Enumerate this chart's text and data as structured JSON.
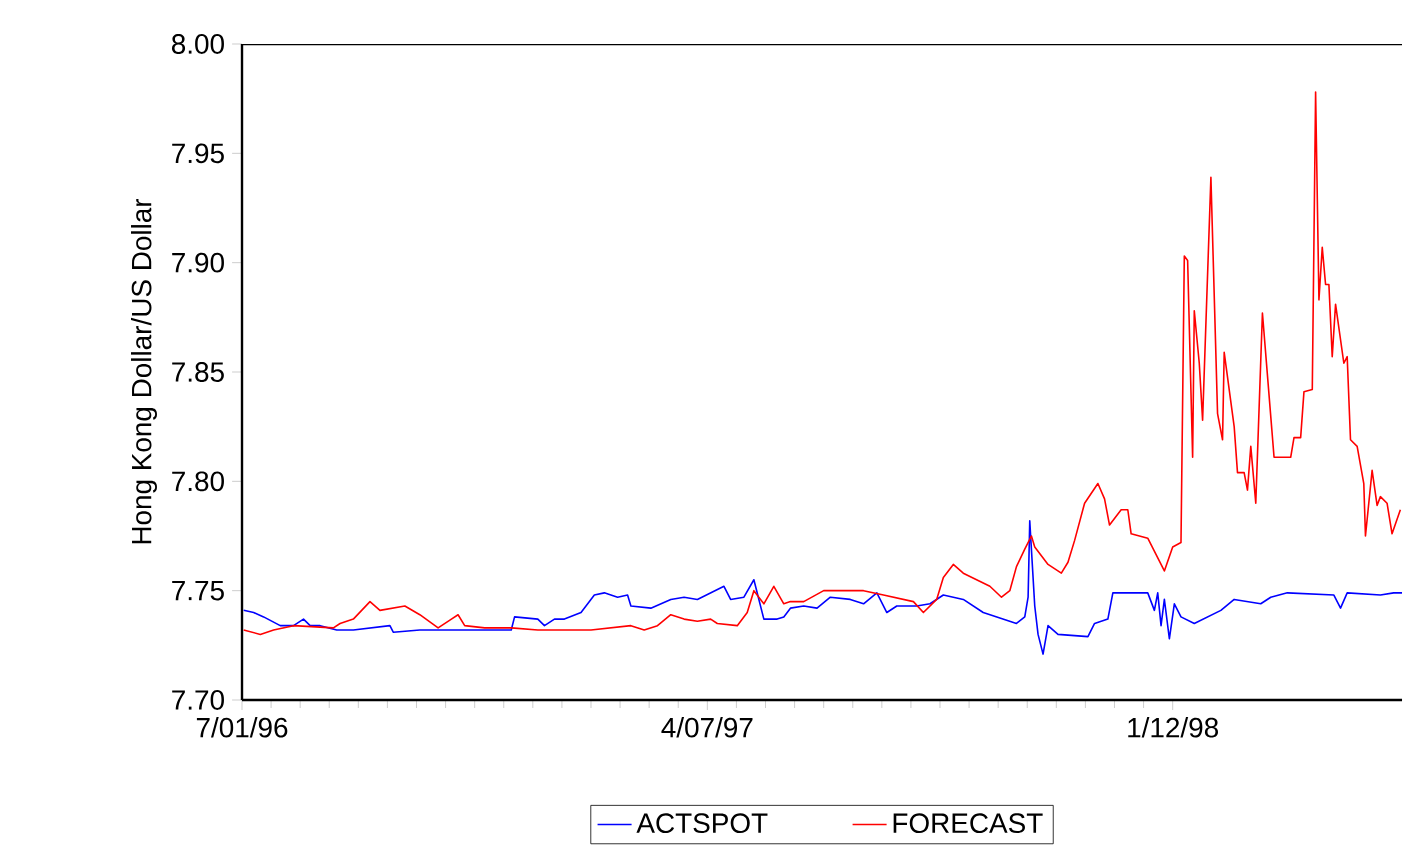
{
  "chart_data": {
    "type": "line",
    "ylabel": "Hong Kong Dollar/US Dollar",
    "xlim": [
      "1996-07-01",
      "1998-05-30"
    ],
    "ylim": [
      7.7,
      8.0
    ],
    "xticks": [
      {
        "value": "1996-07-01",
        "label": "7/01/96"
      },
      {
        "value": "1997-04-07",
        "label": "4/07/97"
      },
      {
        "value": "1998-01-12",
        "label": "1/12/98"
      }
    ],
    "yticks": [
      {
        "value": 7.7,
        "label": "7.70"
      },
      {
        "value": 7.75,
        "label": "7.75"
      },
      {
        "value": 7.8,
        "label": "7.80"
      },
      {
        "value": 7.85,
        "label": "7.85"
      },
      {
        "value": 7.9,
        "label": "7.90"
      },
      {
        "value": 7.95,
        "label": "7.95"
      },
      {
        "value": 8.0,
        "label": "8.00"
      }
    ],
    "grid": false,
    "legend": "bottom",
    "marker": "none",
    "line_style": "solid",
    "series": [
      {
        "name": "ACTSPOT",
        "color": "#0000ff",
        "x": [
          "1996-07-02",
          "1996-07-08",
          "1996-07-14",
          "1996-07-24",
          "1996-08-01",
          "1996-08-07",
          "1996-08-11",
          "1996-08-17",
          "1996-08-27",
          "1996-09-06",
          "1996-09-28",
          "1996-09-30",
          "1996-10-16",
          "1996-12-10",
          "1996-12-12",
          "1996-12-26",
          "1996-12-30",
          "1997-01-05",
          "1997-01-11",
          "1997-01-21",
          "1997-01-29",
          "1997-02-04",
          "1997-02-12",
          "1997-02-18",
          "1997-02-20",
          "1997-03-04",
          "1997-03-16",
          "1997-03-24",
          "1997-04-01",
          "1997-04-17",
          "1997-04-21",
          "1997-04-29",
          "1997-05-05",
          "1997-05-11",
          "1997-05-19",
          "1997-05-23",
          "1997-05-27",
          "1997-06-04",
          "1997-06-12",
          "1997-06-20",
          "1997-07-02",
          "1997-07-10",
          "1997-07-18",
          "1997-07-24",
          "1997-07-30",
          "1997-08-11",
          "1997-08-19",
          "1997-08-27",
          "1997-09-08",
          "1997-09-20",
          "1997-09-28",
          "1997-10-10",
          "1997-10-15",
          "1997-10-17",
          "1997-10-18",
          "1997-10-21",
          "1997-10-23",
          "1997-10-26",
          "1997-10-29",
          "1997-11-04",
          "1997-11-22",
          "1997-11-26",
          "1997-12-04",
          "1997-12-07",
          "1997-12-28",
          "1998-01-01",
          "1998-01-03",
          "1998-01-05",
          "1998-01-07",
          "1998-01-10",
          "1998-01-13",
          "1998-01-17",
          "1998-01-25",
          "1998-02-10",
          "1998-02-18",
          "1998-03-06",
          "1998-03-12",
          "1998-03-22",
          "1998-04-19",
          "1998-04-23",
          "1998-04-27",
          "1998-05-17",
          "1998-05-25",
          "1998-05-30"
        ],
        "values": [
          7.741,
          7.74,
          7.738,
          7.734,
          7.734,
          7.737,
          7.734,
          7.734,
          7.732,
          7.732,
          7.734,
          7.731,
          7.732,
          7.732,
          7.738,
          7.737,
          7.734,
          7.737,
          7.737,
          7.74,
          7.748,
          7.749,
          7.747,
          7.748,
          7.743,
          7.742,
          7.746,
          7.747,
          7.746,
          7.752,
          7.746,
          7.747,
          7.755,
          7.737,
          7.737,
          7.738,
          7.742,
          7.743,
          7.742,
          7.747,
          7.746,
          7.744,
          7.749,
          7.74,
          7.743,
          7.743,
          7.744,
          7.748,
          7.746,
          7.74,
          7.738,
          7.735,
          7.738,
          7.747,
          7.782,
          7.743,
          7.73,
          7.721,
          7.734,
          7.73,
          7.729,
          7.735,
          7.737,
          7.749,
          7.749,
          7.741,
          7.749,
          7.734,
          7.746,
          7.728,
          7.744,
          7.738,
          7.735,
          7.741,
          7.746,
          7.744,
          7.747,
          7.749,
          7.748,
          7.742,
          7.749,
          7.748,
          7.749,
          7.749
        ]
      },
      {
        "name": "FORECAST",
        "color": "#ff0000",
        "x": [
          "1996-07-02",
          "1996-07-12",
          "1996-07-20",
          "1996-08-01",
          "1996-08-25",
          "1996-08-29",
          "1996-09-06",
          "1996-09-16",
          "1996-09-22",
          "1996-10-07",
          "1996-10-16",
          "1996-10-27",
          "1996-11-04",
          "1996-11-08",
          "1996-11-12",
          "1996-11-24",
          "1996-12-10",
          "1996-12-26",
          "1997-01-27",
          "1997-02-20",
          "1997-02-28",
          "1997-03-08",
          "1997-03-16",
          "1997-03-24",
          "1997-04-01",
          "1997-04-09",
          "1997-04-13",
          "1997-04-25",
          "1997-05-01",
          "1997-05-05",
          "1997-05-11",
          "1997-05-17",
          "1997-05-23",
          "1997-05-27",
          "1997-06-04",
          "1997-06-16",
          "1997-07-10",
          "1997-07-22",
          "1997-08-09",
          "1997-08-15",
          "1997-08-23",
          "1997-08-27",
          "1997-09-02",
          "1997-09-08",
          "1997-09-16",
          "1997-09-24",
          "1997-10-01",
          "1997-10-06",
          "1997-10-10",
          "1997-10-15",
          "1997-10-19",
          "1997-10-21",
          "1997-10-29",
          "1997-11-06",
          "1997-11-10",
          "1997-11-14",
          "1997-11-20",
          "1997-11-28",
          "1997-12-02",
          "1997-12-05",
          "1997-12-12",
          "1997-12-16",
          "1997-12-18",
          "1997-12-28",
          "1998-01-07",
          "1998-01-12",
          "1998-01-17",
          "1998-01-19",
          "1998-01-21",
          "1998-01-24",
          "1998-01-25",
          "1998-01-28",
          "1998-01-30",
          "1998-02-04",
          "1998-02-08",
          "1998-02-11",
          "1998-02-12",
          "1998-02-18",
          "1998-02-20",
          "1998-02-24",
          "1998-02-26",
          "1998-02-28",
          "1998-03-03",
          "1998-03-07",
          "1998-03-14",
          "1998-03-24",
          "1998-03-26",
          "1998-03-30",
          "1998-04-01",
          "1998-04-06",
          "1998-04-08",
          "1998-04-10",
          "1998-04-12",
          "1998-04-14",
          "1998-04-16",
          "1998-04-18",
          "1998-04-20",
          "1998-04-25",
          "1998-04-27",
          "1998-04-29",
          "1998-05-03",
          "1998-05-07",
          "1998-05-08",
          "1998-05-12",
          "1998-05-15",
          "1998-05-17",
          "1998-05-21",
          "1998-05-24",
          "1998-05-29"
        ],
        "values": [
          7.732,
          7.73,
          7.732,
          7.734,
          7.733,
          7.735,
          7.737,
          7.745,
          7.741,
          7.743,
          7.739,
          7.733,
          7.737,
          7.739,
          7.734,
          7.733,
          7.733,
          7.732,
          7.732,
          7.734,
          7.732,
          7.734,
          7.739,
          7.737,
          7.736,
          7.737,
          7.735,
          7.734,
          7.74,
          7.75,
          7.744,
          7.752,
          7.744,
          7.745,
          7.745,
          7.75,
          7.75,
          7.748,
          7.745,
          7.74,
          7.746,
          7.756,
          7.762,
          7.758,
          7.755,
          7.752,
          7.747,
          7.75,
          7.761,
          7.769,
          7.775,
          7.77,
          7.762,
          7.758,
          7.763,
          7.773,
          7.79,
          7.799,
          7.792,
          7.78,
          7.787,
          7.787,
          7.776,
          7.774,
          7.759,
          7.77,
          7.772,
          7.903,
          7.901,
          7.811,
          7.878,
          7.854,
          7.828,
          7.939,
          7.831,
          7.819,
          7.859,
          7.825,
          7.804,
          7.804,
          7.796,
          7.816,
          7.79,
          7.877,
          7.811,
          7.811,
          7.82,
          7.82,
          7.841,
          7.842,
          7.978,
          7.883,
          7.907,
          7.89,
          7.89,
          7.857,
          7.881,
          7.854,
          7.857,
          7.819,
          7.816,
          7.799,
          7.775,
          7.805,
          7.789,
          7.793,
          7.79,
          7.776,
          7.787
        ]
      }
    ]
  }
}
